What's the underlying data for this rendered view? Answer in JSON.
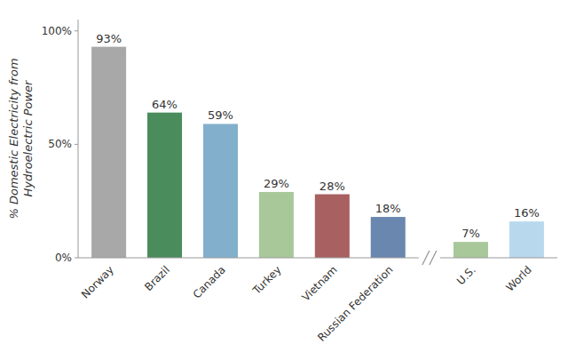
{
  "chart_data": [
    {
      "type": "bar",
      "y_label": "% Domestic Electricity from\nHydroelectric Power",
      "categories": [
        "Norway",
        "Brazil",
        "Canada",
        "Turkey",
        "Vietnam",
        "Russian Federation"
      ],
      "values": [
        93,
        64,
        59,
        29,
        28,
        18
      ],
      "value_labels": [
        "93%",
        "64%",
        "59%",
        "29%",
        "28%",
        "18%"
      ],
      "colors": [
        "#a8a8a8",
        "#4a8c5c",
        "#82b0cc",
        "#a8c89a",
        "#a86060",
        "#6a87b0"
      ],
      "ylim": [
        0,
        105
      ],
      "yticks": [
        {
          "value": 0,
          "label": "0%"
        },
        {
          "value": 50,
          "label": "50%"
        },
        {
          "value": 100,
          "label": "100%"
        }
      ],
      "data_labels": true
    },
    {
      "type": "bar",
      "categories": [
        "U.S.",
        "World"
      ],
      "values": [
        7,
        16
      ],
      "value_labels": [
        "7%",
        "16%"
      ],
      "colors": [
        "#a8c89a",
        "#b8d8ee"
      ],
      "ylim": [
        0,
        105
      ],
      "data_labels": true,
      "tick_labels": "x"
    }
  ]
}
